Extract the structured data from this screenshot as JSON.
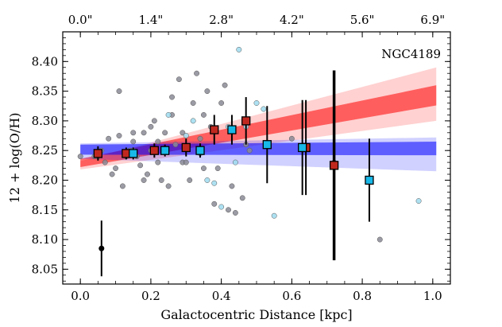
{
  "chart_data": {
    "type": "scatter",
    "title": "",
    "annotation": "NGC4189",
    "xlabel": "Galactocentric Distance [kpc]",
    "ylabel": "12 + log(O/H)",
    "xlim": [
      -0.05,
      1.05
    ],
    "ylim": [
      8.025,
      8.45
    ],
    "x_ticks": [
      0.0,
      0.2,
      0.4,
      0.6,
      0.8,
      1.0
    ],
    "x_tick_labels": [
      "0.0",
      "0.2",
      "0.4",
      "0.6",
      "0.8",
      "1.0"
    ],
    "y_ticks": [
      8.05,
      8.1,
      8.15,
      8.2,
      8.25,
      8.3,
      8.35,
      8.4
    ],
    "y_tick_labels": [
      "8.05",
      "8.10",
      "8.15",
      "8.20",
      "8.25",
      "8.30",
      "8.35",
      "8.40"
    ],
    "top_axis": {
      "label_unit": "arcsec",
      "ticks_kpc": [
        0.0,
        0.2,
        0.4,
        0.6,
        0.8,
        1.0
      ],
      "tick_labels": [
        "0.0\"",
        "1.4\"",
        "2.8\"",
        "4.2\"",
        "5.6\"",
        "6.9\""
      ]
    },
    "bands": [
      {
        "name": "red outer",
        "color": "#ff0000",
        "opacity": 0.18,
        "x": [
          0.0,
          1.01
        ],
        "upper": [
          8.232,
          8.39
        ],
        "lower": [
          8.218,
          8.3
        ]
      },
      {
        "name": "red inner",
        "color": "#ff0000",
        "opacity": 0.55,
        "x": [
          0.0,
          1.01
        ],
        "upper": [
          8.236,
          8.36
        ],
        "lower": [
          8.222,
          8.326
        ]
      },
      {
        "name": "blue outer",
        "color": "#0000ff",
        "opacity": 0.18,
        "x": [
          0.0,
          1.01
        ],
        "upper": [
          8.262,
          8.272
        ],
        "lower": [
          8.236,
          8.215
        ]
      },
      {
        "name": "blue inner",
        "color": "#0000ff",
        "opacity": 0.55,
        "x": [
          0.0,
          1.01
        ],
        "upper": [
          8.26,
          8.265
        ],
        "lower": [
          8.243,
          8.242
        ]
      }
    ],
    "series": [
      {
        "name": "gray spaxels",
        "color": "#8a8a95",
        "points": [
          [
            0.0,
            8.24
          ],
          [
            0.04,
            8.24
          ],
          [
            0.06,
            8.25
          ],
          [
            0.07,
            8.23
          ],
          [
            0.08,
            8.27
          ],
          [
            0.09,
            8.21
          ],
          [
            0.1,
            8.22
          ],
          [
            0.11,
            8.275
          ],
          [
            0.12,
            8.19
          ],
          [
            0.13,
            8.24
          ],
          [
            0.14,
            8.25
          ],
          [
            0.15,
            8.265
          ],
          [
            0.16,
            8.24
          ],
          [
            0.17,
            8.225
          ],
          [
            0.18,
            8.28
          ],
          [
            0.19,
            8.21
          ],
          [
            0.2,
            8.25
          ],
          [
            0.2,
            8.29
          ],
          [
            0.21,
            8.3
          ],
          [
            0.22,
            8.23
          ],
          [
            0.23,
            8.2
          ],
          [
            0.24,
            8.28
          ],
          [
            0.25,
            8.19
          ],
          [
            0.26,
            8.31
          ],
          [
            0.26,
            8.34
          ],
          [
            0.27,
            8.26
          ],
          [
            0.28,
            8.37
          ],
          [
            0.29,
            8.23
          ],
          [
            0.3,
            8.23
          ],
          [
            0.31,
            8.2
          ],
          [
            0.32,
            8.33
          ],
          [
            0.33,
            8.38
          ],
          [
            0.34,
            8.27
          ],
          [
            0.35,
            8.31
          ],
          [
            0.36,
            8.35
          ],
          [
            0.37,
            8.29
          ],
          [
            0.38,
            8.16
          ],
          [
            0.39,
            8.22
          ],
          [
            0.4,
            8.33
          ],
          [
            0.41,
            8.36
          ],
          [
            0.42,
            8.15
          ],
          [
            0.43,
            8.19
          ],
          [
            0.44,
            8.145
          ],
          [
            0.46,
            8.17
          ],
          [
            0.47,
            8.26
          ],
          [
            0.48,
            8.25
          ],
          [
            0.6,
            8.27
          ],
          [
            0.72,
            8.23
          ],
          [
            0.85,
            8.1
          ],
          [
            0.11,
            8.35
          ],
          [
            0.15,
            8.28
          ],
          [
            0.18,
            8.2
          ],
          [
            0.22,
            8.265
          ],
          [
            0.29,
            8.28
          ],
          [
            0.35,
            8.22
          ],
          [
            0.05,
            8.24
          ]
        ]
      },
      {
        "name": "cyan spaxels",
        "color": "#9fdcf0",
        "points": [
          [
            0.25,
            8.31
          ],
          [
            0.3,
            8.275
          ],
          [
            0.32,
            8.3
          ],
          [
            0.34,
            8.245
          ],
          [
            0.36,
            8.2
          ],
          [
            0.38,
            8.195
          ],
          [
            0.4,
            8.155
          ],
          [
            0.42,
            8.29
          ],
          [
            0.44,
            8.23
          ],
          [
            0.45,
            8.42
          ],
          [
            0.47,
            8.29
          ],
          [
            0.5,
            8.33
          ],
          [
            0.52,
            8.32
          ],
          [
            0.55,
            8.14
          ],
          [
            0.96,
            8.165
          ],
          [
            0.15,
            8.25
          ]
        ]
      },
      {
        "name": "red binned",
        "color": "#c0281f",
        "points": [
          {
            "x": 0.05,
            "y": 8.245,
            "err": 0.012
          },
          {
            "x": 0.13,
            "y": 8.245,
            "err": 0.01
          },
          {
            "x": 0.21,
            "y": 8.25,
            "err": 0.012
          },
          {
            "x": 0.3,
            "y": 8.255,
            "err": 0.015
          },
          {
            "x": 0.38,
            "y": 8.285,
            "err": 0.025
          },
          {
            "x": 0.47,
            "y": 8.3,
            "err": 0.04
          },
          {
            "x": 0.64,
            "y": 8.255,
            "err": 0.08
          },
          {
            "x": 0.72,
            "y": 8.225,
            "err": 0.16
          }
        ]
      },
      {
        "name": "cyan binned",
        "color": "#18b8e8",
        "points": [
          {
            "x": 0.15,
            "y": 8.245,
            "err": 0.01
          },
          {
            "x": 0.24,
            "y": 8.25,
            "err": 0.01
          },
          {
            "x": 0.34,
            "y": 8.25,
            "err": 0.012
          },
          {
            "x": 0.43,
            "y": 8.285,
            "err": 0.025
          },
          {
            "x": 0.53,
            "y": 8.26,
            "err": 0.065
          },
          {
            "x": 0.63,
            "y": 8.255,
            "err": 0.08
          },
          {
            "x": 0.82,
            "y": 8.2,
            "err": 0.07
          }
        ]
      },
      {
        "name": "reference point",
        "color": "#000000",
        "points": [
          {
            "x": 0.06,
            "y": 8.085,
            "err": 0.047
          }
        ]
      }
    ]
  }
}
